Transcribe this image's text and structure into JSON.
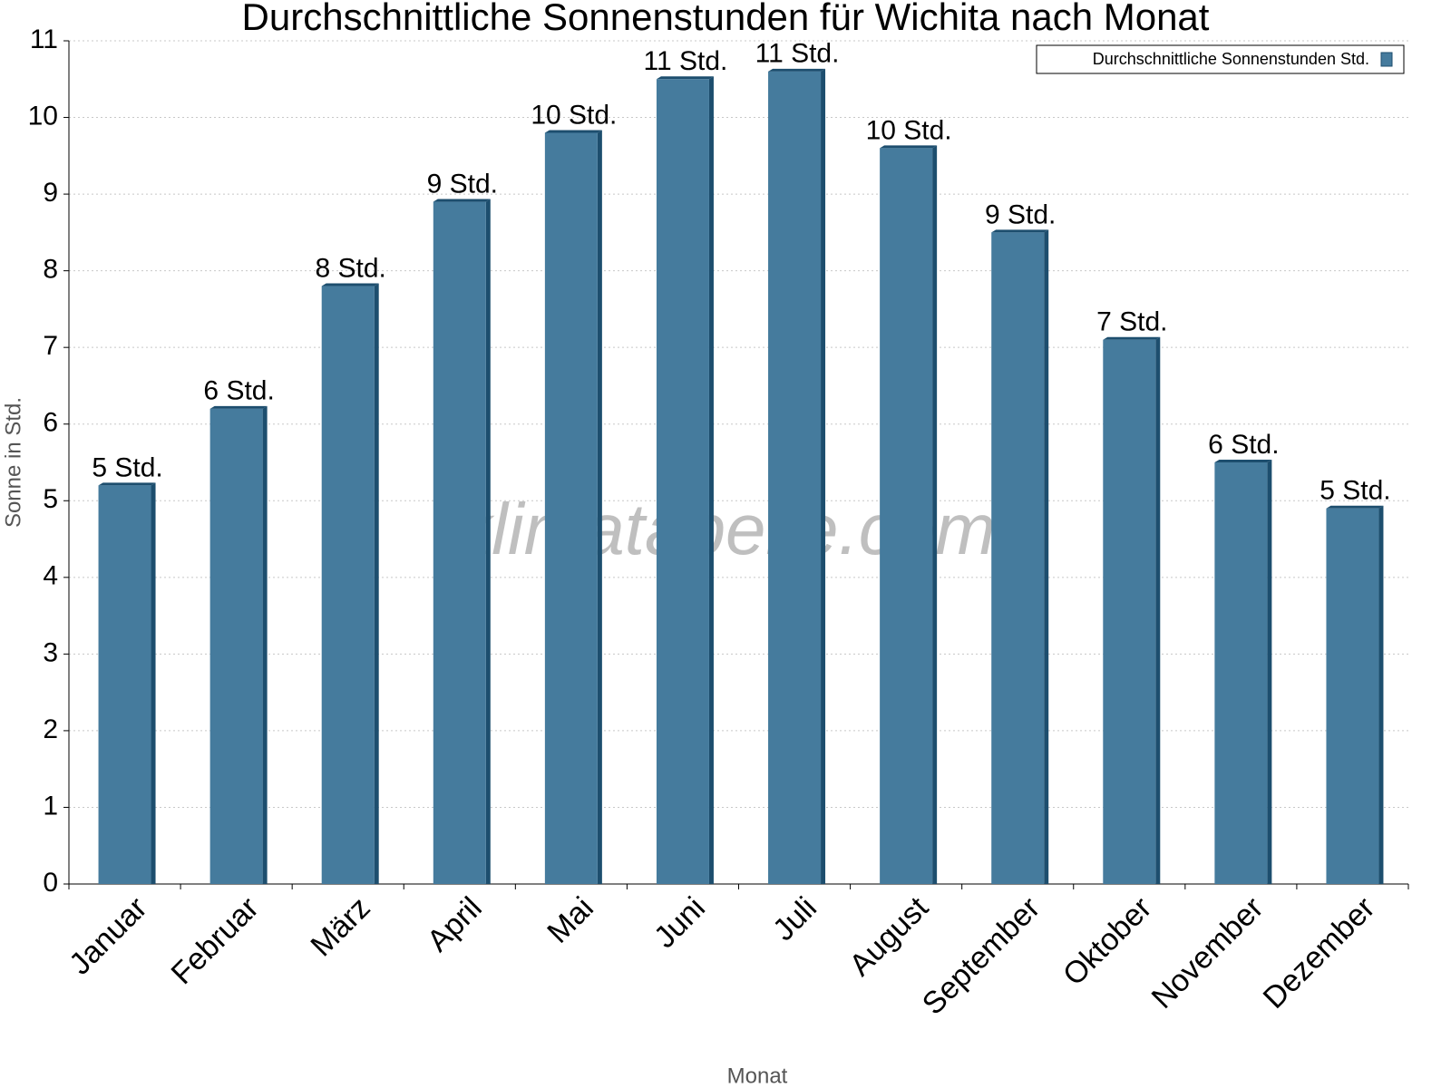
{
  "chart_data": {
    "type": "bar",
    "title": "Durchschnittliche Sonnenstunden für Wichita nach Monat",
    "x_label": "Monat",
    "y_label": "Sonne in Std.",
    "watermark": "klimatabelle.com",
    "categories": [
      "Januar",
      "Februar",
      "März",
      "April",
      "Mai",
      "Juni",
      "Juli",
      "August",
      "September",
      "Oktober",
      "November",
      "Dezember"
    ],
    "series": [
      {
        "name": "Durchschnittliche Sonnenstunden Std.",
        "color": "#457b9d",
        "values": [
          5.2,
          6.2,
          7.8,
          8.9,
          9.8,
          10.5,
          10.6,
          9.6,
          8.5,
          7.1,
          5.5,
          4.9
        ],
        "value_labels": [
          "5 Std.",
          "6 Std.",
          "8 Std.",
          "9 Std.",
          "10 Std.",
          "11 Std.",
          "11 Std.",
          "10 Std.",
          "9 Std.",
          "7 Std.",
          "6 Std.",
          "5 Std."
        ]
      }
    ],
    "ylim": [
      0,
      11
    ],
    "yticks": [
      0,
      1,
      2,
      3,
      4,
      5,
      6,
      7,
      8,
      9,
      10,
      11
    ],
    "grid": true,
    "legend": "top-right"
  }
}
